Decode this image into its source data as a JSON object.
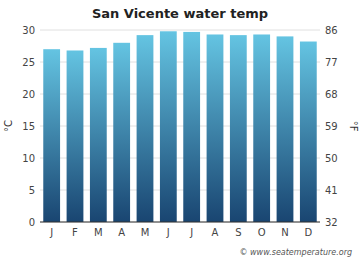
{
  "chart_data": {
    "type": "bar",
    "title": "San Vicente water temp",
    "categories": [
      "J",
      "F",
      "M",
      "A",
      "M",
      "J",
      "J",
      "A",
      "S",
      "O",
      "N",
      "D"
    ],
    "values": [
      27.0,
      26.8,
      27.2,
      28.0,
      29.2,
      29.8,
      29.7,
      29.3,
      29.2,
      29.3,
      29.0,
      28.2
    ],
    "color": "#64c4e2",
    "y_label": "°C",
    "y2_label": "°F",
    "ylim": [
      0,
      30
    ],
    "yticks": [
      0,
      5,
      10,
      15,
      20,
      25,
      30
    ],
    "y2lim": [
      32,
      86
    ],
    "y2ticks": [
      32,
      41,
      50,
      59,
      68,
      77,
      86
    ],
    "grid": true,
    "annotations": [
      "© www.seatemperature.org"
    ]
  }
}
